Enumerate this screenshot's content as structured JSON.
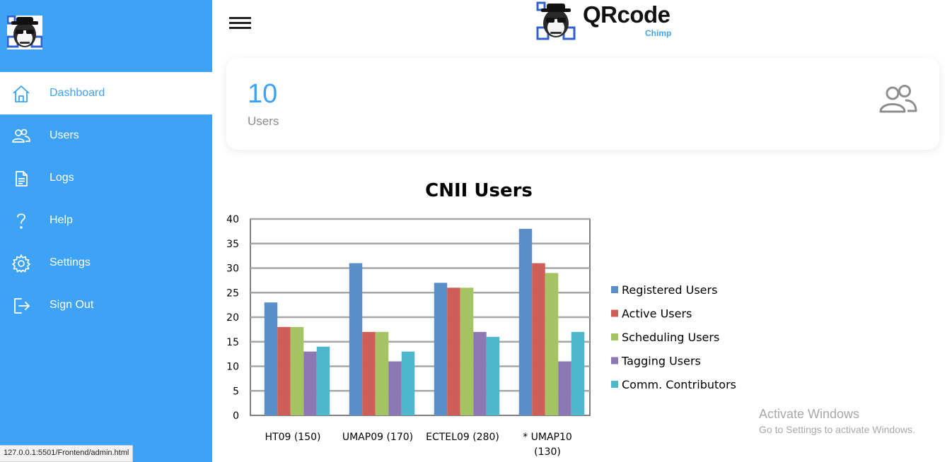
{
  "sidebar": {
    "items": [
      {
        "label": "Dashboard",
        "icon": "home-icon",
        "active": true
      },
      {
        "label": "Users",
        "icon": "users-icon",
        "active": false
      },
      {
        "label": "Logs",
        "icon": "document-icon",
        "active": false
      },
      {
        "label": "Help",
        "icon": "help-icon",
        "active": false
      },
      {
        "label": "Settings",
        "icon": "gear-icon",
        "active": false
      },
      {
        "label": "Sign Out",
        "icon": "sign-out-icon",
        "active": false
      }
    ]
  },
  "brand": {
    "name": "QRcode",
    "sub": "Chimp"
  },
  "stats": {
    "count": "10",
    "label": "Users",
    "icon": "users-icon"
  },
  "status_url": "127.0.0.1:5501/Frontend/admin.html",
  "watermark": {
    "title": "Activate Windows",
    "subtitle": "Go to Settings to activate Windows."
  },
  "colors": {
    "accent": "#3ea3f7",
    "sidebar_bg": "#3ea3f7",
    "active_bg": "#ffffff"
  },
  "chart_data": {
    "type": "bar",
    "title": "CNII Users",
    "xlabel": "",
    "ylabel": "",
    "ylim": [
      0,
      40
    ],
    "yticks": [
      0,
      5,
      10,
      15,
      20,
      25,
      30,
      35,
      40
    ],
    "grid": true,
    "legend": "right",
    "categories": [
      [
        "HT09 (150)"
      ],
      [
        "UMAP09 (170)"
      ],
      [
        "ECTEL09 (280)"
      ],
      [
        "* UMAP10",
        "(130)"
      ]
    ],
    "series": [
      {
        "name": "Registered Users",
        "color": "#5b8fca",
        "values": [
          23,
          31,
          27,
          38
        ]
      },
      {
        "name": "Active Users",
        "color": "#cd5f58",
        "values": [
          18,
          17,
          26,
          31
        ]
      },
      {
        "name": "Scheduling Users",
        "color": "#a4c363",
        "values": [
          18,
          17,
          26,
          29
        ]
      },
      {
        "name": "Tagging Users",
        "color": "#8e78b4",
        "values": [
          13,
          11,
          17,
          11
        ]
      },
      {
        "name": "Comm. Contributors",
        "color": "#4fb7cc",
        "values": [
          14,
          13,
          16,
          17
        ]
      }
    ]
  }
}
